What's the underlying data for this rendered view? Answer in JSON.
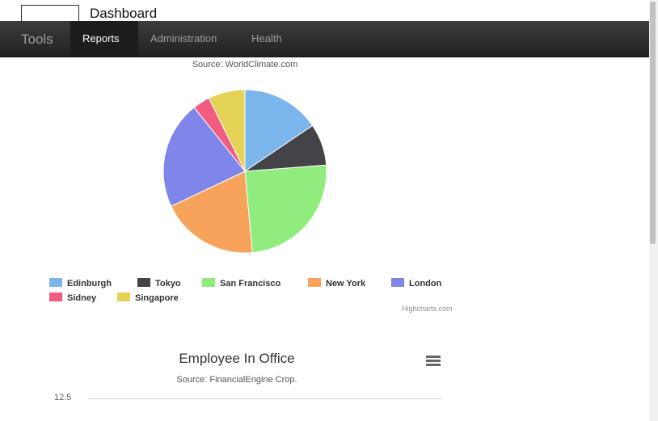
{
  "header": {
    "dashboard_title": "Dashboard"
  },
  "navbar": {
    "brand": "Tools",
    "items": [
      {
        "label": "Reports",
        "active": true
      },
      {
        "label": "Administration",
        "active": false
      },
      {
        "label": "Health",
        "active": false
      }
    ]
  },
  "charts": [
    {
      "subtitle": "Source: WorldClimate.com",
      "credits": "Highcharts.com"
    },
    {
      "title": "Employee In Office",
      "subtitle": "Source: FinancialEngine Crop.",
      "y_tick": "12.5",
      "menu_icon": "hamburger-menu-icon"
    }
  ],
  "chart_data": [
    {
      "type": "pie",
      "subtitle": "Source: WorldClimate.com",
      "categories": [
        "Edinburgh",
        "Tokyo",
        "San Francisco",
        "New York",
        "London",
        "Sidney",
        "Singapore"
      ],
      "values": [
        16,
        8.5,
        25.5,
        20,
        22,
        3.5,
        7.5
      ],
      "colors": [
        "#7cb5ec",
        "#434348",
        "#90ed7d",
        "#f7a35c",
        "#8085e9",
        "#f15c80",
        "#e4d354"
      ],
      "legend": "bottom"
    },
    {
      "type": "line",
      "title": "Employee In Office",
      "subtitle": "Source: FinancialEngine Crop.",
      "y_ticks": [
        12.5
      ]
    }
  ]
}
